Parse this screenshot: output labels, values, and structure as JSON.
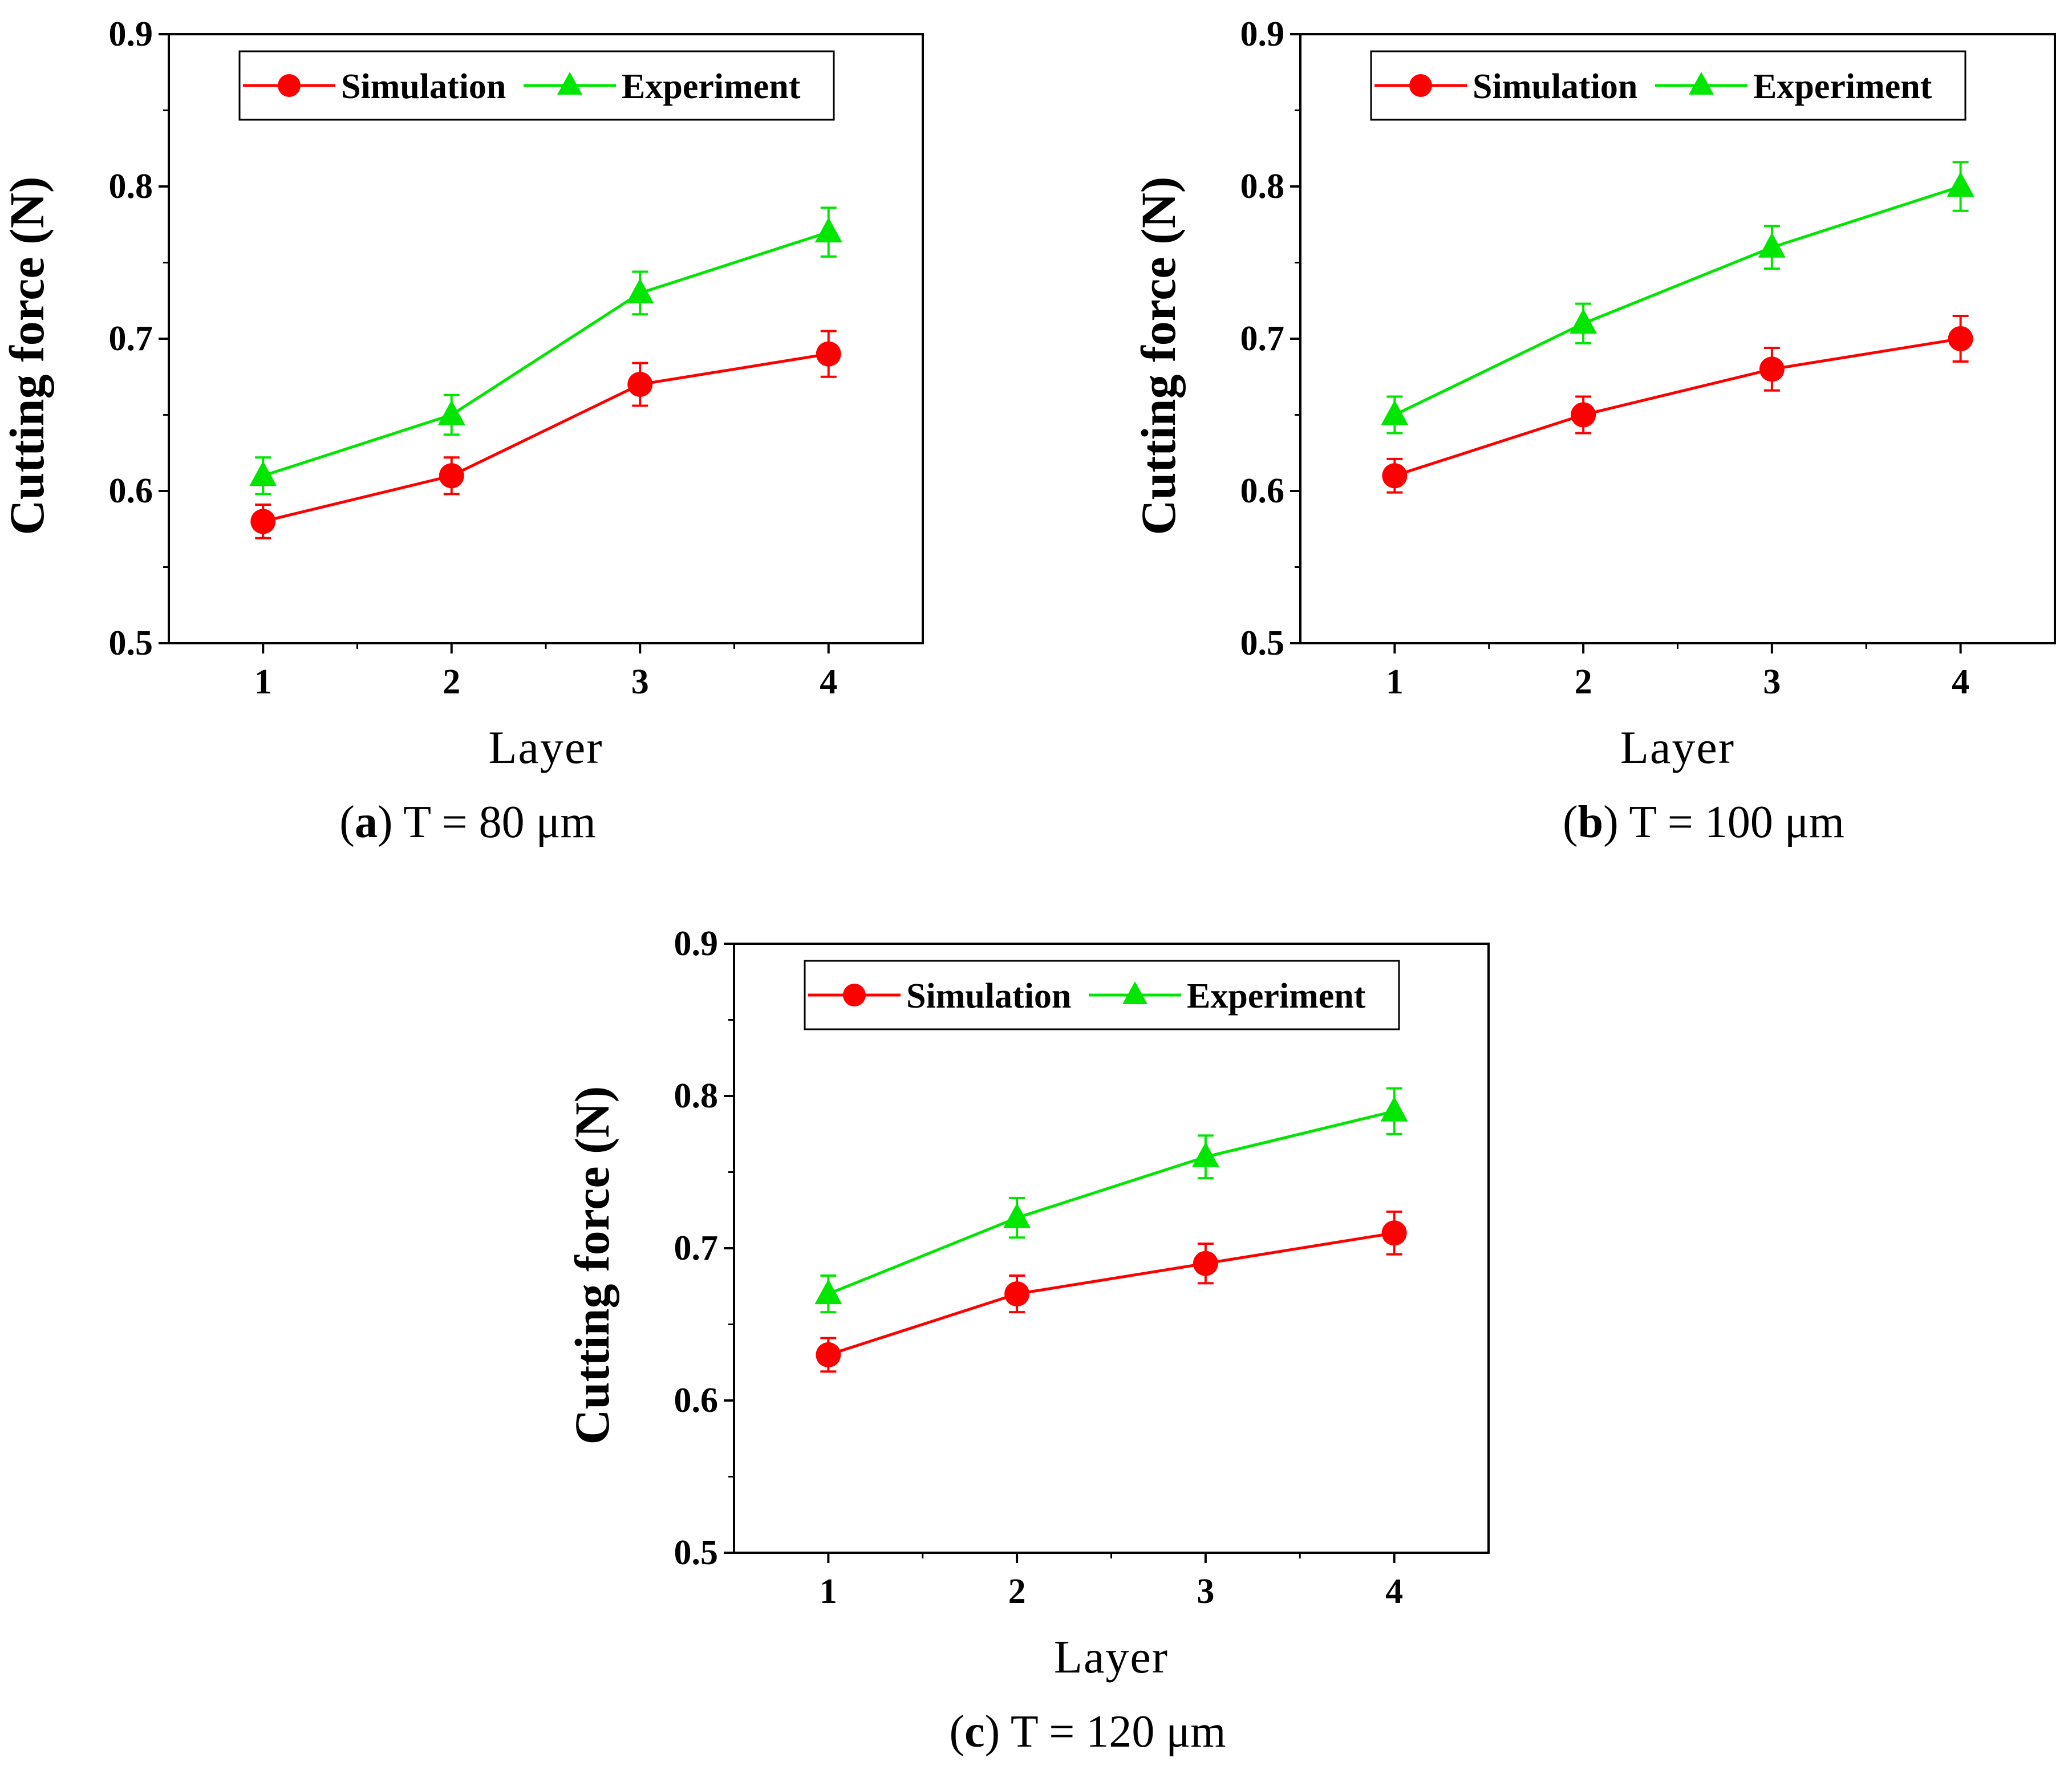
{
  "chart_data": [
    {
      "type": "line",
      "panel": "a",
      "caption_letter": "a",
      "caption_rest": "T = 80 μm",
      "categories": [
        "1",
        "2",
        "3",
        "4"
      ],
      "x": [
        1,
        2,
        3,
        4
      ],
      "xlabel": "Layer",
      "ylabel": "Cutting force (N)",
      "xlim": [
        0.5,
        4.5
      ],
      "ylim": [
        0.5,
        0.9
      ],
      "yticks": [
        "0.5",
        "0.6",
        "0.7",
        "0.8",
        "0.9"
      ],
      "grid": false,
      "legend_position": "top-left",
      "series": [
        {
          "name": "Simulation",
          "color": "#ff0000",
          "marker": "circle",
          "values": [
            0.58,
            0.61,
            0.67,
            0.69
          ],
          "errors": [
            0.011,
            0.012,
            0.014,
            0.015
          ]
        },
        {
          "name": "Experiment",
          "color": "#00e600",
          "marker": "triangle",
          "values": [
            0.61,
            0.65,
            0.73,
            0.77
          ],
          "errors": [
            0.012,
            0.013,
            0.014,
            0.016
          ]
        }
      ]
    },
    {
      "type": "line",
      "panel": "b",
      "caption_letter": "b",
      "caption_rest": "T = 100 μm",
      "categories": [
        "1",
        "2",
        "3",
        "4"
      ],
      "x": [
        1,
        2,
        3,
        4
      ],
      "xlabel": "Layer",
      "ylabel": "Cutting force (N)",
      "xlim": [
        0.5,
        4.5
      ],
      "ylim": [
        0.5,
        0.9
      ],
      "yticks": [
        "0.5",
        "0.6",
        "0.7",
        "0.8",
        "0.9"
      ],
      "grid": false,
      "legend_position": "top-left",
      "series": [
        {
          "name": "Simulation",
          "color": "#ff0000",
          "marker": "circle",
          "values": [
            0.61,
            0.65,
            0.68,
            0.7
          ],
          "errors": [
            0.011,
            0.012,
            0.014,
            0.015
          ]
        },
        {
          "name": "Experiment",
          "color": "#00e600",
          "marker": "triangle",
          "values": [
            0.65,
            0.71,
            0.76,
            0.8
          ],
          "errors": [
            0.012,
            0.013,
            0.014,
            0.016
          ]
        }
      ]
    },
    {
      "type": "line",
      "panel": "c",
      "caption_letter": "c",
      "caption_rest": "T = 120 μm",
      "categories": [
        "1",
        "2",
        "3",
        "4"
      ],
      "x": [
        1,
        2,
        3,
        4
      ],
      "xlabel": "Layer",
      "ylabel": "Cutting force (N)",
      "xlim": [
        0.5,
        4.5
      ],
      "ylim": [
        0.5,
        0.9
      ],
      "yticks": [
        "0.5",
        "0.6",
        "0.7",
        "0.8",
        "0.9"
      ],
      "grid": false,
      "legend_position": "top-left",
      "series": [
        {
          "name": "Simulation",
          "color": "#ff0000",
          "marker": "circle",
          "values": [
            0.63,
            0.67,
            0.69,
            0.71
          ],
          "errors": [
            0.011,
            0.012,
            0.013,
            0.014
          ]
        },
        {
          "name": "Experiment",
          "color": "#00e600",
          "marker": "triangle",
          "values": [
            0.67,
            0.72,
            0.76,
            0.79
          ],
          "errors": [
            0.012,
            0.013,
            0.014,
            0.015
          ]
        }
      ]
    }
  ]
}
